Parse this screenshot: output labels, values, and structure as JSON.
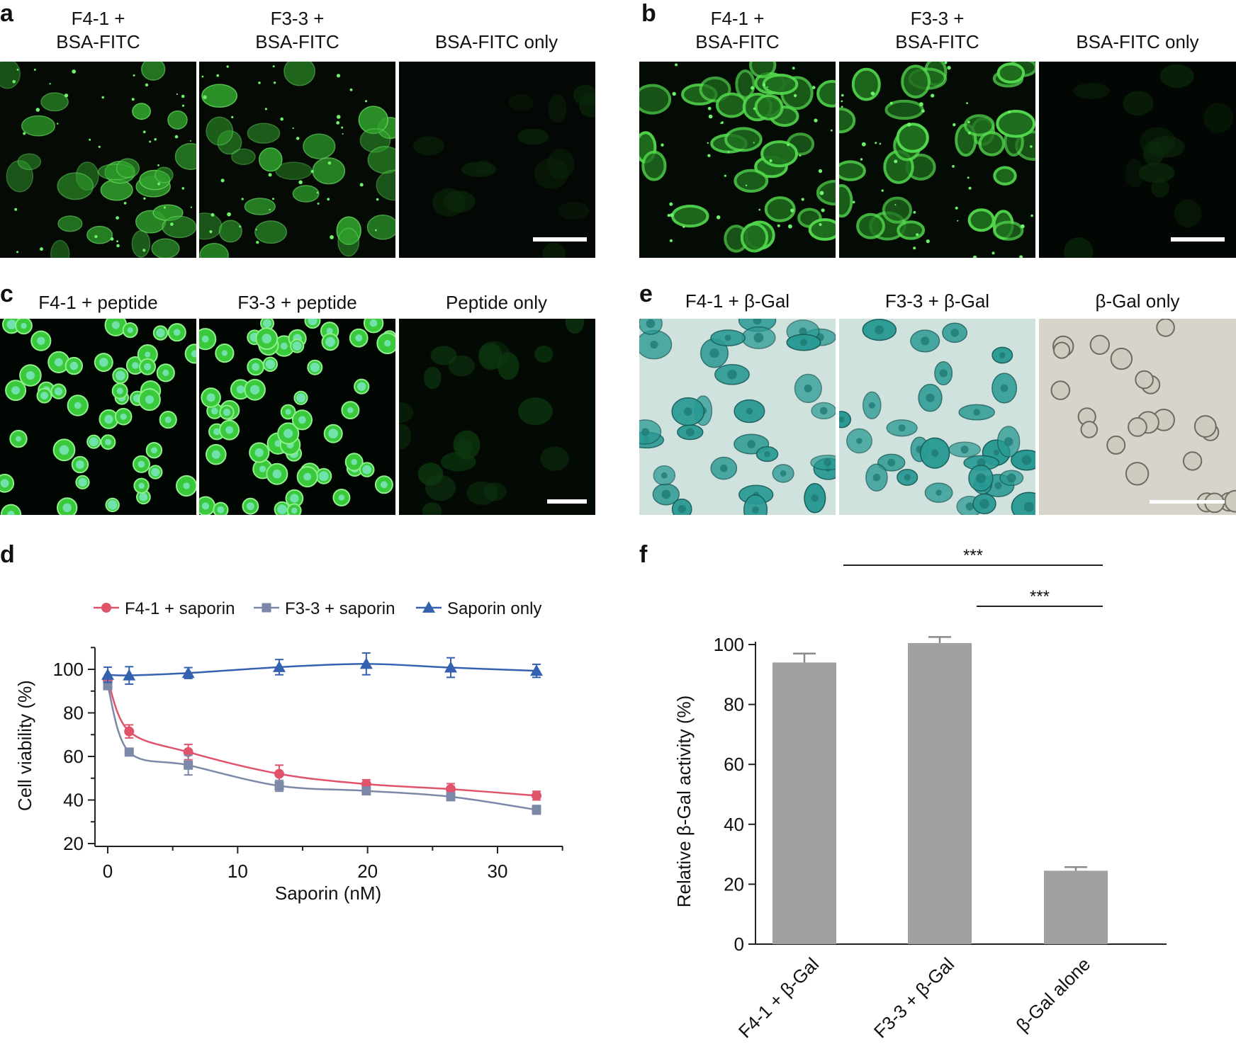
{
  "panels": {
    "a": {
      "label": "a",
      "titles": [
        [
          "F4-1 +",
          "BSA-FITC"
        ],
        [
          "F3-3 +",
          "BSA-FITC"
        ],
        [
          "BSA-FITC only",
          ""
        ]
      ]
    },
    "b": {
      "label": "b",
      "titles": [
        [
          "F4-1 +",
          "BSA-FITC"
        ],
        [
          "F3-3 +",
          "BSA-FITC"
        ],
        [
          "BSA-FITC only",
          ""
        ]
      ]
    },
    "c": {
      "label": "c",
      "titles": [
        "F4-1 + peptide",
        "F3-3 + peptide",
        "Peptide only"
      ]
    },
    "e": {
      "label": "e",
      "titles": [
        "F4-1 + β-Gal",
        "F3-3 + β-Gal",
        "β-Gal only"
      ]
    },
    "d": {
      "label": "d"
    },
    "f": {
      "label": "f"
    }
  },
  "chart_data": [
    {
      "panel": "d",
      "type": "line",
      "xlabel": "Saporin (nM)",
      "ylabel": "Cell viability (%)",
      "xlim": [
        -1,
        35
      ],
      "ylim": [
        20,
        110
      ],
      "xticks": [
        0,
        10,
        20,
        30
      ],
      "yticks": [
        20,
        40,
        60,
        80,
        100
      ],
      "legend_position": "top",
      "grid": false,
      "series": [
        {
          "name": "F4-1 + saporin",
          "color": "#e0536b",
          "marker": "circle",
          "x": [
            0,
            1.65,
            6.2,
            13.2,
            19.9,
            26.4,
            33
          ],
          "y": [
            95,
            71.5,
            62,
            52,
            47.3,
            45,
            42
          ],
          "err": [
            1.5,
            3,
            3.5,
            4,
            2,
            2.5,
            2
          ]
        },
        {
          "name": "F3-3 + saporin",
          "color": "#7b88a8",
          "marker": "square",
          "x": [
            0,
            1.65,
            6.2,
            13.2,
            19.9,
            26.4,
            33
          ],
          "y": [
            92.5,
            62,
            56,
            46.5,
            44.2,
            41.5,
            35.5
          ],
          "err": [
            1.5,
            1.5,
            4.5,
            2.5,
            1.2,
            1.5,
            2
          ]
        },
        {
          "name": "Saporin only",
          "color": "#3461b0",
          "marker": "triangle",
          "x": [
            0,
            1.65,
            6.2,
            13.2,
            19.9,
            26.4,
            33
          ],
          "y": [
            97.5,
            97.2,
            98.3,
            101,
            102.5,
            100.8,
            99.3
          ],
          "err": [
            3.5,
            4,
            2.5,
            3.5,
            5,
            4.5,
            3
          ]
        }
      ]
    },
    {
      "panel": "f",
      "type": "bar",
      "ylabel": "Relative β-Gal activity (%)",
      "ylim": [
        0,
        100
      ],
      "yticks": [
        0,
        20,
        40,
        60,
        80,
        100
      ],
      "categories": [
        "F4-1 + β-Gal",
        "F3-3 + β-Gal",
        "β-Gal alone"
      ],
      "values": [
        94,
        100.5,
        24.5
      ],
      "err": [
        3,
        2,
        1.2
      ],
      "bar_color": "#a0a0a0",
      "significance": [
        {
          "from": 0,
          "to": 2,
          "label": "***"
        },
        {
          "from": 1,
          "to": 2,
          "label": "***"
        }
      ]
    }
  ]
}
